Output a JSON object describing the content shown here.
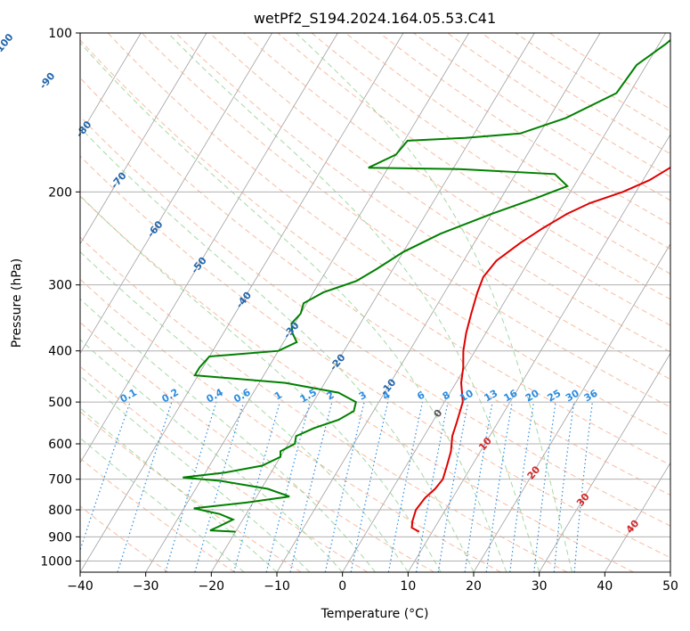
{
  "chart_data": {
    "type": "line",
    "title": "wetPf2_S194.2024.164.05.53.C41",
    "xlabel": "Temperature (°C)",
    "ylabel": "Pressure (hPa)",
    "xlim": [
      -40,
      50
    ],
    "ylim": [
      1050,
      100
    ],
    "y_scale": "log",
    "grid": true,
    "x_ticks": [
      -40,
      -30,
      -20,
      -10,
      0,
      10,
      20,
      30,
      40,
      50
    ],
    "y_ticks": [
      1000,
      900,
      800,
      700,
      600,
      500,
      400,
      300,
      200,
      100
    ],
    "series": [
      {
        "role": "temperature",
        "color": "#e00000",
        "points": [
          {
            "p": 880,
            "t": 8.0
          },
          {
            "p": 865,
            "t": 6.5
          },
          {
            "p": 840,
            "t": 6.0
          },
          {
            "p": 800,
            "t": 5.5
          },
          {
            "p": 760,
            "t": 5.8
          },
          {
            "p": 730,
            "t": 6.5
          },
          {
            "p": 700,
            "t": 6.8
          },
          {
            "p": 660,
            "t": 6.2
          },
          {
            "p": 620,
            "t": 5.5
          },
          {
            "p": 580,
            "t": 4.3
          },
          {
            "p": 550,
            "t": 3.8
          },
          {
            "p": 500,
            "t": 2.8
          },
          {
            "p": 460,
            "t": 0.8
          },
          {
            "p": 430,
            "t": -0.3
          },
          {
            "p": 400,
            "t": -1.8
          },
          {
            "p": 370,
            "t": -3.0
          },
          {
            "p": 340,
            "t": -4.0
          },
          {
            "p": 310,
            "t": -5.0
          },
          {
            "p": 290,
            "t": -5.5
          },
          {
            "p": 270,
            "t": -5.0
          },
          {
            "p": 250,
            "t": -3.0
          },
          {
            "p": 235,
            "t": -1.0
          },
          {
            "p": 220,
            "t": 1.5
          },
          {
            "p": 210,
            "t": 4.0
          },
          {
            "p": 200,
            "t": 8.0
          },
          {
            "p": 190,
            "t": 11.0
          },
          {
            "p": 180,
            "t": 13.0
          },
          {
            "p": 170,
            "t": 13.5
          },
          {
            "p": 160,
            "t": 14.5
          },
          {
            "p": 150,
            "t": 17.0
          },
          {
            "p": 140,
            "t": 20.0
          },
          {
            "p": 130,
            "t": 23.0
          },
          {
            "p": 120,
            "t": 26.5
          },
          {
            "p": 110,
            "t": 29.0
          },
          {
            "p": 100,
            "t": 31.0
          }
        ]
      },
      {
        "role": "dewpoint",
        "color": "#008000",
        "points": [
          {
            "p": 880,
            "t": -20.0
          },
          {
            "p": 875,
            "t": -24.0
          },
          {
            "p": 860,
            "t": -23.0
          },
          {
            "p": 835,
            "t": -21.5
          },
          {
            "p": 815,
            "t": -24.0
          },
          {
            "p": 795,
            "t": -28.5
          },
          {
            "p": 775,
            "t": -21.0
          },
          {
            "p": 755,
            "t": -15.0
          },
          {
            "p": 730,
            "t": -19.0
          },
          {
            "p": 705,
            "t": -27.0
          },
          {
            "p": 695,
            "t": -33.0
          },
          {
            "p": 680,
            "t": -27.0
          },
          {
            "p": 660,
            "t": -22.0
          },
          {
            "p": 635,
            "t": -20.0
          },
          {
            "p": 620,
            "t": -20.5
          },
          {
            "p": 600,
            "t": -19.0
          },
          {
            "p": 580,
            "t": -19.5
          },
          {
            "p": 560,
            "t": -17.5
          },
          {
            "p": 540,
            "t": -14.5
          },
          {
            "p": 520,
            "t": -13.0
          },
          {
            "p": 500,
            "t": -13.5
          },
          {
            "p": 480,
            "t": -17.0
          },
          {
            "p": 460,
            "t": -26.0
          },
          {
            "p": 445,
            "t": -40.5
          },
          {
            "p": 430,
            "t": -40.5
          },
          {
            "p": 410,
            "t": -40.0
          },
          {
            "p": 400,
            "t": -30.0
          },
          {
            "p": 385,
            "t": -28.0
          },
          {
            "p": 370,
            "t": -29.5
          },
          {
            "p": 355,
            "t": -30.5
          },
          {
            "p": 340,
            "t": -30.0
          },
          {
            "p": 325,
            "t": -30.5
          },
          {
            "p": 310,
            "t": -28.5
          },
          {
            "p": 295,
            "t": -24.5
          },
          {
            "p": 280,
            "t": -22.5
          },
          {
            "p": 260,
            "t": -20.0
          },
          {
            "p": 240,
            "t": -16.0
          },
          {
            "p": 220,
            "t": -10.0
          },
          {
            "p": 205,
            "t": -4.5
          },
          {
            "p": 195,
            "t": -1.0
          },
          {
            "p": 185,
            "t": -4.0
          },
          {
            "p": 181,
            "t": -19.0
          },
          {
            "p": 180,
            "t": -33.0
          },
          {
            "p": 170,
            "t": -30.0
          },
          {
            "p": 160,
            "t": -29.5
          },
          {
            "p": 158,
            "t": -21.0
          },
          {
            "p": 155,
            "t": -13.0
          },
          {
            "p": 145,
            "t": -7.5
          },
          {
            "p": 130,
            "t": -2.0
          },
          {
            "p": 115,
            "t": -1.5
          },
          {
            "p": 105,
            "t": 1.0
          },
          {
            "p": 100,
            "t": 2.0
          }
        ]
      }
    ],
    "isotherm_labels": [
      "-100",
      "-90",
      "-80",
      "-70",
      "-60",
      "-50",
      "-40",
      "-30",
      "-20",
      "-10",
      "0",
      "10",
      "20",
      "30",
      "40"
    ],
    "mixing_ratio_labels": [
      "0.1",
      "0.2",
      "0.4",
      "0.6",
      "1",
      "1.5",
      "2",
      "3",
      "4",
      "6",
      "8",
      "10",
      "13",
      "16",
      "20",
      "25",
      "30",
      "36"
    ],
    "colors": {
      "isotherm": "#a0a0a0",
      "dry_adiabat": "#f4a582",
      "moist_adiabat": "#7fc97f",
      "mixing_ratio": "#2b8cdf",
      "isotherm_label_cold": "#2166ac",
      "isotherm_label_warm": "#d62728",
      "isotherm_label_zero": "#555555"
    }
  }
}
